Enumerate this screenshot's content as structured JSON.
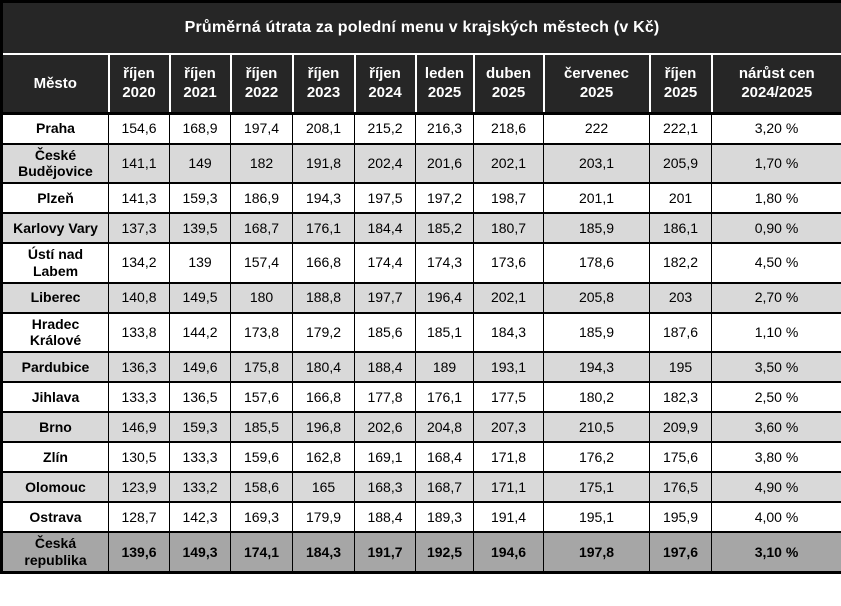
{
  "colors": {
    "header_bg": "#262626",
    "header_text": "#ffffff",
    "stripe_bg": "#d9d9d9",
    "summary_bg": "#a6a6a6",
    "border_color": "#000000"
  },
  "chart_data": {
    "type": "table",
    "title": "Průměrná útrata za polední menu v krajských městech (v Kč)",
    "columns": [
      "Město",
      "říjen 2020",
      "říjen 2021",
      "říjen 2022",
      "říjen 2023",
      "říjen 2024",
      "leden 2025",
      "duben 2025",
      "červenec 2025",
      "říjen 2025",
      "nárůst cen 2024/2025"
    ],
    "rows": [
      {
        "label": "Praha",
        "values": [
          "154,6",
          "168,9",
          "197,4",
          "208,1",
          "215,2",
          "216,3",
          "218,6",
          "222",
          "222,1",
          "3,20 %"
        ]
      },
      {
        "label": "České Budějovice",
        "values": [
          "141,1",
          "149",
          "182",
          "191,8",
          "202,4",
          "201,6",
          "202,1",
          "203,1",
          "205,9",
          "1,70 %"
        ]
      },
      {
        "label": "Plzeň",
        "values": [
          "141,3",
          "159,3",
          "186,9",
          "194,3",
          "197,5",
          "197,2",
          "198,7",
          "201,1",
          "201",
          "1,80 %"
        ]
      },
      {
        "label": "Karlovy Vary",
        "values": [
          "137,3",
          "139,5",
          "168,7",
          "176,1",
          "184,4",
          "185,2",
          "180,7",
          "185,9",
          "186,1",
          "0,90 %"
        ]
      },
      {
        "label": "Ústí nad Labem",
        "values": [
          "134,2",
          "139",
          "157,4",
          "166,8",
          "174,4",
          "174,3",
          "173,6",
          "178,6",
          "182,2",
          "4,50 %"
        ]
      },
      {
        "label": "Liberec",
        "values": [
          "140,8",
          "149,5",
          "180",
          "188,8",
          "197,7",
          "196,4",
          "202,1",
          "205,8",
          "203",
          "2,70 %"
        ]
      },
      {
        "label": "Hradec Králové",
        "values": [
          "133,8",
          "144,2",
          "173,8",
          "179,2",
          "185,6",
          "185,1",
          "184,3",
          "185,9",
          "187,6",
          "1,10 %"
        ]
      },
      {
        "label": "Pardubice",
        "values": [
          "136,3",
          "149,6",
          "175,8",
          "180,4",
          "188,4",
          "189",
          "193,1",
          "194,3",
          "195",
          "3,50 %"
        ]
      },
      {
        "label": "Jihlava",
        "values": [
          "133,3",
          "136,5",
          "157,6",
          "166,8",
          "177,8",
          "176,1",
          "177,5",
          "180,2",
          "182,3",
          "2,50 %"
        ]
      },
      {
        "label": "Brno",
        "values": [
          "146,9",
          "159,3",
          "185,5",
          "196,8",
          "202,6",
          "204,8",
          "207,3",
          "210,5",
          "209,9",
          "3,60 %"
        ]
      },
      {
        "label": "Zlín",
        "values": [
          "130,5",
          "133,3",
          "159,6",
          "162,8",
          "169,1",
          "168,4",
          "171,8",
          "176,2",
          "175,6",
          "3,80 %"
        ]
      },
      {
        "label": "Olomouc",
        "values": [
          "123,9",
          "133,2",
          "158,6",
          "165",
          "168,3",
          "168,7",
          "171,1",
          "175,1",
          "176,5",
          "4,90 %"
        ]
      },
      {
        "label": "Ostrava",
        "values": [
          "128,7",
          "142,3",
          "169,3",
          "179,9",
          "188,4",
          "189,3",
          "191,4",
          "195,1",
          "195,9",
          "4,00 %"
        ]
      },
      {
        "label": "Česká republika",
        "summary": true,
        "values": [
          "139,6",
          "149,3",
          "174,1",
          "184,3",
          "191,7",
          "192,5",
          "194,6",
          "197,8",
          "197,6",
          "3,10 %"
        ]
      }
    ]
  }
}
